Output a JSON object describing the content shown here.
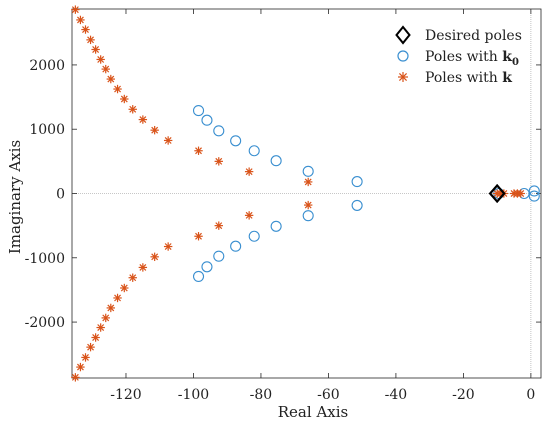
{
  "chart_data": {
    "type": "scatter",
    "xlabel": "Real Axis",
    "ylabel": "Imaginary Axis",
    "xlim": [
      -136,
      3
    ],
    "ylim": [
      -2870,
      2870
    ],
    "xticks": [
      -120,
      -100,
      -80,
      -60,
      -40,
      -20,
      0
    ],
    "yticks": [
      -2000,
      -1000,
      0,
      1000,
      2000
    ],
    "xtick_labels": [
      "-120",
      "-100",
      "-80",
      "-60",
      "-40",
      "-20",
      "0"
    ],
    "ytick_labels": [
      "-2000",
      "-1000",
      "0",
      "1000",
      "2000"
    ],
    "grid": false,
    "legend_placement": "top-right",
    "legend": {
      "desired": "Desired poles",
      "k0_prefix": "Poles with ",
      "k0_bold": "k",
      "k0_sub": "0",
      "k_prefix": "Poles with ",
      "k_bold": "k"
    },
    "series": [
      {
        "key": "desired",
        "marker": "diamond",
        "color": "#000000",
        "points": [
          [
            -10,
            0
          ],
          [
            -10,
            0
          ],
          [
            -10,
            0
          ]
        ]
      },
      {
        "key": "k0",
        "marker": "circle",
        "color": "#3a8fd0",
        "points": [
          [
            -98.5,
            1290
          ],
          [
            -96,
            1140
          ],
          [
            -92.5,
            975
          ],
          [
            -87.5,
            820
          ],
          [
            -82,
            665
          ],
          [
            -75.5,
            510
          ],
          [
            -66,
            345
          ],
          [
            -51.5,
            185
          ],
          [
            -98.5,
            -1290
          ],
          [
            -96,
            -1140
          ],
          [
            -92.5,
            -975
          ],
          [
            -87.5,
            -820
          ],
          [
            -82,
            -665
          ],
          [
            -75.5,
            -510
          ],
          [
            -66,
            -345
          ],
          [
            -51.5,
            -185
          ],
          [
            -9.5,
            0
          ],
          [
            -2,
            0
          ],
          [
            1,
            40
          ],
          [
            1,
            -40
          ]
        ]
      },
      {
        "key": "k",
        "marker": "star",
        "color": "#d95319",
        "points": [
          [
            -135,
            2860
          ],
          [
            -133.5,
            2700
          ],
          [
            -132,
            2550
          ],
          [
            -130.5,
            2390
          ],
          [
            -129,
            2240
          ],
          [
            -127.5,
            2085
          ],
          [
            -126,
            1935
          ],
          [
            -124.5,
            1780
          ],
          [
            -122.5,
            1625
          ],
          [
            -120.5,
            1470
          ],
          [
            -118,
            1310
          ],
          [
            -115,
            1150
          ],
          [
            -111.5,
            985
          ],
          [
            -107.5,
            825
          ],
          [
            -98.5,
            665
          ],
          [
            -92.5,
            500
          ],
          [
            -83.5,
            340
          ],
          [
            -66,
            180
          ],
          [
            -135,
            -2860
          ],
          [
            -133.5,
            -2700
          ],
          [
            -132,
            -2550
          ],
          [
            -130.5,
            -2390
          ],
          [
            -129,
            -2240
          ],
          [
            -127.5,
            -2085
          ],
          [
            -126,
            -1935
          ],
          [
            -124.5,
            -1780
          ],
          [
            -122.5,
            -1625
          ],
          [
            -120.5,
            -1470
          ],
          [
            -118,
            -1310
          ],
          [
            -115,
            -1150
          ],
          [
            -111.5,
            -985
          ],
          [
            -107.5,
            -825
          ],
          [
            -98.5,
            -665
          ],
          [
            -92.5,
            -500
          ],
          [
            -83.5,
            -340
          ],
          [
            -66,
            -180
          ],
          [
            -10,
            0
          ],
          [
            -9,
            0
          ],
          [
            -8,
            0
          ],
          [
            -5,
            0
          ],
          [
            -4,
            0
          ],
          [
            -3,
            0
          ]
        ]
      }
    ]
  }
}
